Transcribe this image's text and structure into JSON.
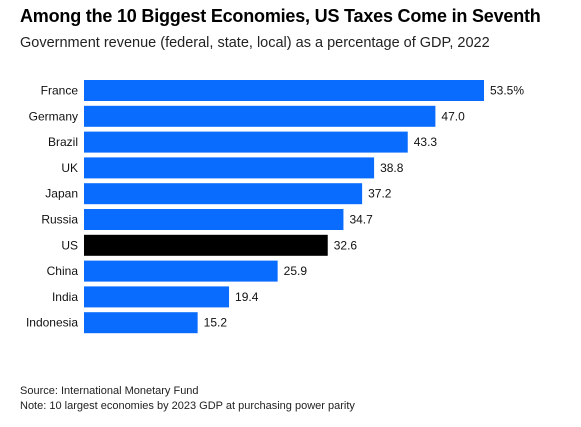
{
  "header": {
    "title": "Among the 10 Biggest Economies, US Taxes Come in Seventh",
    "subtitle": "Government revenue (federal, state, local) as a percentage of GDP, 2022"
  },
  "footer": {
    "source": "Source: International Monetary Fund",
    "note": "Note: 10 largest economies by 2023 GDP at purchasing power parity"
  },
  "colors": {
    "default_bar": "#0a6cff",
    "highlight_bar": "#000000"
  },
  "chart_data": {
    "type": "bar",
    "orientation": "horizontal",
    "title": "Among the 10 Biggest Economies, US Taxes Come in Seventh",
    "subtitle": "Government revenue (federal, state, local) as a percentage of GDP, 2022",
    "categories": [
      "France",
      "Germany",
      "Brazil",
      "UK",
      "Japan",
      "Russia",
      "US",
      "China",
      "India",
      "Indonesia"
    ],
    "values": [
      53.5,
      47.0,
      43.3,
      38.8,
      37.2,
      34.7,
      32.6,
      25.9,
      19.4,
      15.2
    ],
    "value_labels": [
      "53.5%",
      "47.0",
      "43.3",
      "38.8",
      "37.2",
      "34.7",
      "32.6",
      "25.9",
      "19.4",
      "15.2"
    ],
    "highlight": "US",
    "xlim": [
      0,
      53.5
    ],
    "grid": false,
    "legend": "none"
  }
}
